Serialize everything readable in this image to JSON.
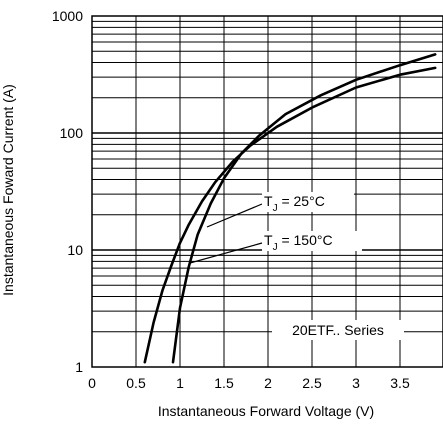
{
  "chart_data": {
    "type": "line",
    "xlabel": "Instantaneous Forward Voltage (V)",
    "ylabel": "Instantaneous Foward Current (A)",
    "xlim": [
      0,
      3.9
    ],
    "ylim": [
      1,
      1000
    ],
    "yscale": "log",
    "grid": true,
    "x_ticks": [
      0,
      0.5,
      1,
      1.5,
      2,
      2.5,
      3,
      3.5
    ],
    "x_tick_labels": [
      "0",
      "0.5",
      "1",
      "1.5",
      "2",
      "2.5",
      "3",
      "3.5"
    ],
    "y_ticks": [
      1,
      10,
      100,
      1000
    ],
    "y_tick_labels": [
      "1",
      "10",
      "100",
      "1000"
    ],
    "series_label": "20ETF.. Series",
    "series": [
      {
        "name": "T_J = 25°C",
        "x": [
          0.92,
          1.0,
          1.1,
          1.2,
          1.35,
          1.5,
          1.7,
          1.9,
          2.2,
          2.6,
          3.0,
          3.5,
          3.9
        ],
        "y": [
          1.1,
          3.2,
          7.2,
          13.5,
          25,
          41,
          67,
          95,
          145,
          210,
          285,
          380,
          470
        ]
      },
      {
        "name": "T_J = 150°C",
        "x": [
          0.6,
          0.7,
          0.8,
          0.9,
          1.0,
          1.1,
          1.25,
          1.4,
          1.6,
          1.8,
          2.1,
          2.5,
          3.0,
          3.5,
          3.9
        ],
        "y": [
          1.1,
          2.4,
          4.5,
          7.3,
          11.5,
          16.5,
          26,
          38,
          57,
          78,
          113,
          165,
          245,
          315,
          360
        ]
      }
    ],
    "annotations": [
      {
        "text_main": "T",
        "text_sub": "J",
        "text_rest": " = 25°C"
      },
      {
        "text_main": "T",
        "text_sub": "J",
        "text_rest": " = 150°C"
      }
    ]
  }
}
